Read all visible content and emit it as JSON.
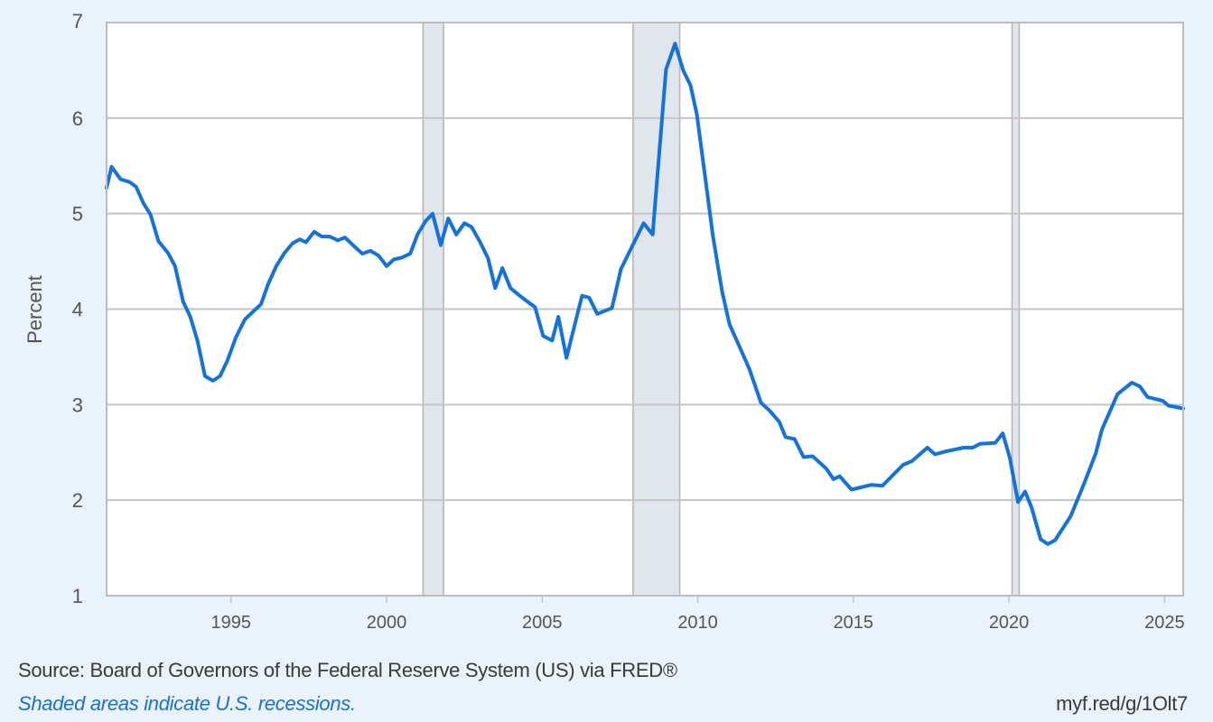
{
  "chart_data": {
    "type": "line",
    "title": "",
    "xlabel": "",
    "ylabel": "Percent",
    "xlim": [
      1991.0,
      2025.6
    ],
    "ylim": [
      1,
      7
    ],
    "yticks": [
      1,
      2,
      3,
      4,
      5,
      6,
      7
    ],
    "xticks": [
      1995,
      2000,
      2005,
      2010,
      2015,
      2020,
      2025
    ],
    "grid": true,
    "line_color": "#1273de",
    "recession_color": "#e1e6ec",
    "recessions": [
      [
        2001.17,
        2001.83
      ],
      [
        2007.92,
        2009.42
      ],
      [
        2020.1,
        2020.33
      ]
    ],
    "series": [
      {
        "name": "Percent",
        "x": [
          1991.0,
          1991.16,
          1991.45,
          1991.74,
          1991.95,
          1992.18,
          1992.41,
          1992.67,
          1992.97,
          1993.2,
          1993.46,
          1993.69,
          1993.92,
          1994.16,
          1994.42,
          1994.65,
          1994.88,
          1995.15,
          1995.44,
          1995.73,
          1995.96,
          1996.19,
          1996.45,
          1996.72,
          1996.98,
          1997.21,
          1997.41,
          1997.67,
          1997.91,
          1998.17,
          1998.43,
          1998.66,
          1998.95,
          1999.22,
          1999.48,
          1999.74,
          2000.0,
          2000.23,
          2000.49,
          2000.76,
          2000.99,
          2001.25,
          2001.48,
          2001.74,
          2001.98,
          2002.24,
          2002.5,
          2002.73,
          2002.99,
          2003.26,
          2003.49,
          2003.72,
          2003.98,
          2004.24,
          2004.48,
          2004.77,
          2005.03,
          2005.32,
          2005.52,
          2005.78,
          2006.28,
          2006.51,
          2006.77,
          2007.24,
          2007.53,
          2007.94,
          2008.26,
          2008.55,
          2008.98,
          2009.27,
          2009.53,
          2009.77,
          2009.97,
          2010.23,
          2010.49,
          2010.78,
          2011.02,
          2011.31,
          2011.66,
          2012.03,
          2012.3,
          2012.62,
          2012.82,
          2013.11,
          2013.4,
          2013.69,
          2014.13,
          2014.36,
          2014.56,
          2014.94,
          2015.58,
          2015.93,
          2016.6,
          2016.89,
          2017.38,
          2017.62,
          2017.97,
          2018.55,
          2018.84,
          2019.07,
          2019.56,
          2019.8,
          2020.03,
          2020.29,
          2020.52,
          2020.73,
          2021.02,
          2021.25,
          2021.48,
          2021.98,
          2022.41,
          2022.79,
          2022.99,
          2023.49,
          2023.95,
          2024.21,
          2024.45,
          2024.94,
          2025.12,
          2025.6
        ],
        "y": [
          5.27,
          5.49,
          5.36,
          5.33,
          5.28,
          5.11,
          4.99,
          4.71,
          4.59,
          4.45,
          4.08,
          3.92,
          3.67,
          3.3,
          3.25,
          3.3,
          3.46,
          3.7,
          3.89,
          3.98,
          4.05,
          4.26,
          4.45,
          4.59,
          4.69,
          4.73,
          4.7,
          4.81,
          4.76,
          4.76,
          4.72,
          4.75,
          4.66,
          4.58,
          4.61,
          4.56,
          4.45,
          4.52,
          4.54,
          4.58,
          4.78,
          4.92,
          5.0,
          4.67,
          4.95,
          4.78,
          4.9,
          4.86,
          4.71,
          4.53,
          4.22,
          4.43,
          4.22,
          4.15,
          4.09,
          4.02,
          3.72,
          3.67,
          3.92,
          3.49,
          4.14,
          4.12,
          3.95,
          4.01,
          4.42,
          4.69,
          4.9,
          4.78,
          6.51,
          6.78,
          6.5,
          6.34,
          6.04,
          5.4,
          4.76,
          4.19,
          3.84,
          3.63,
          3.37,
          3.02,
          2.94,
          2.82,
          2.66,
          2.64,
          2.45,
          2.46,
          2.33,
          2.22,
          2.25,
          2.11,
          2.16,
          2.15,
          2.37,
          2.41,
          2.55,
          2.48,
          2.51,
          2.55,
          2.55,
          2.59,
          2.6,
          2.7,
          2.44,
          1.98,
          2.09,
          1.92,
          1.59,
          1.54,
          1.58,
          1.83,
          2.17,
          2.49,
          2.74,
          3.11,
          3.23,
          3.19,
          3.08,
          3.04,
          2.99,
          2.96
        ]
      }
    ]
  },
  "footer": {
    "source": "Source: Board of Governors of the Federal Reserve System (US) via FRED®",
    "note": "Shaded areas indicate U.S. recessions.",
    "url": "myf.red/g/1Olt7"
  }
}
